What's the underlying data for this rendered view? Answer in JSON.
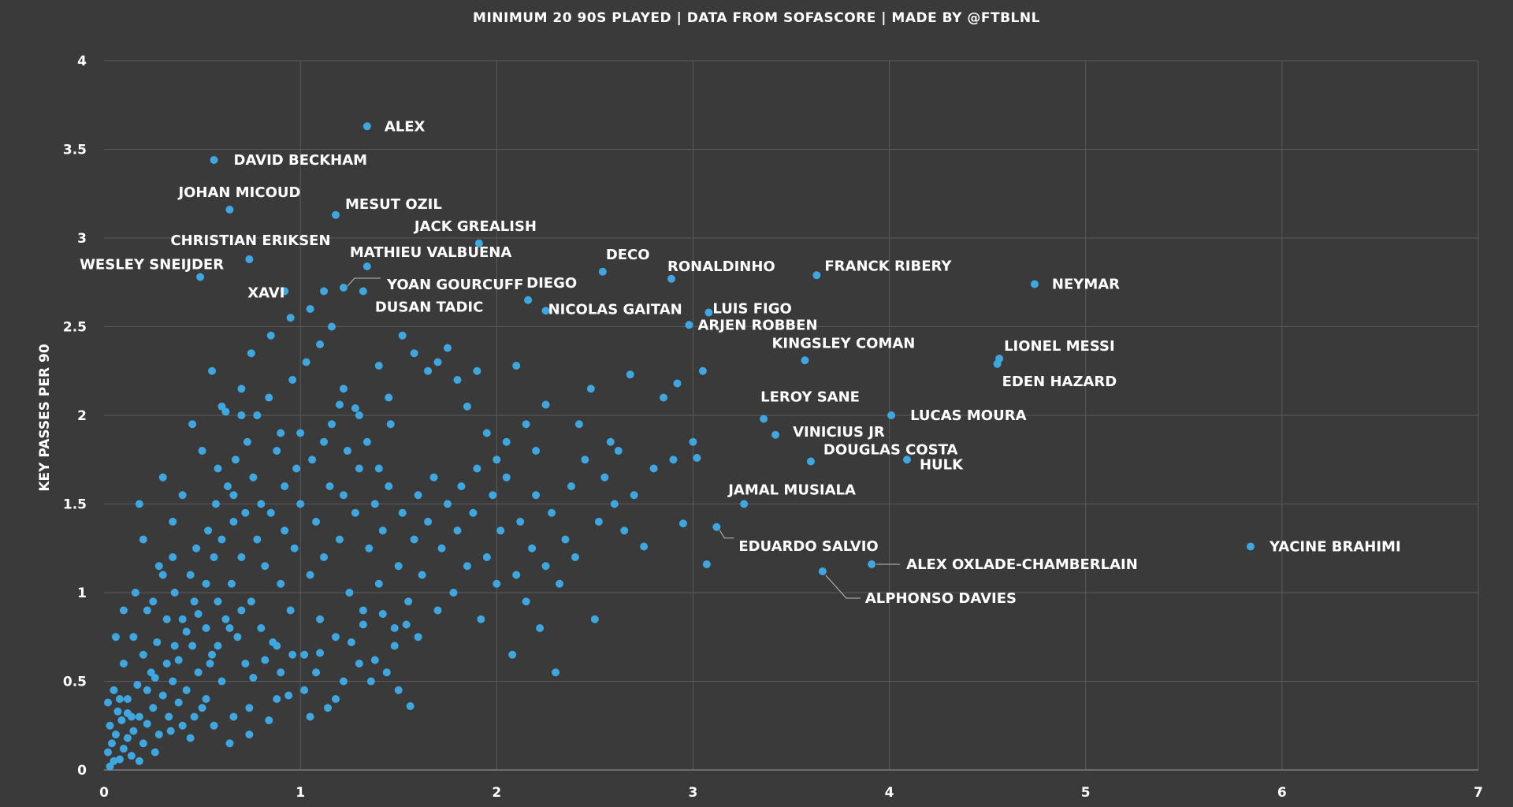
{
  "chart_data": {
    "type": "scatter",
    "title": "",
    "subtitle": "MINIMUM 20 90S PLAYED | DATA FROM SOFASCORE | MADE BY @FTBLNL",
    "xlabel": "",
    "ylabel": "KEY PASSES PER 90",
    "xlim": [
      0,
      7
    ],
    "ylim": [
      0,
      4
    ],
    "xticks": [
      "0",
      "1",
      "2",
      "3",
      "4",
      "5",
      "6",
      "7"
    ],
    "yticks": [
      "0",
      "0.5",
      "1",
      "1.5",
      "2",
      "2.5",
      "3",
      "3.5",
      "4"
    ],
    "grid": true,
    "point_color": "#3fa7e0",
    "background": "#3a3a3a",
    "labeled_points": [
      {
        "name": "ALEX",
        "x": 1.34,
        "y": 3.63
      },
      {
        "name": "DAVID BECKHAM",
        "x": 0.56,
        "y": 3.44
      },
      {
        "name": "JOHAN MICOUD",
        "x": 0.64,
        "y": 3.16
      },
      {
        "name": "MESUT OZIL",
        "x": 1.18,
        "y": 3.13
      },
      {
        "name": "CHRISTIAN ERIKSEN",
        "x": 0.74,
        "y": 2.88
      },
      {
        "name": "JACK GREALISH",
        "x": 1.91,
        "y": 2.97
      },
      {
        "name": "WESLEY SNEIJDER",
        "x": 0.49,
        "y": 2.78
      },
      {
        "name": "XAVI",
        "x": 0.92,
        "y": 2.7
      },
      {
        "name": "MATHIEU VALBUENA",
        "x": 1.34,
        "y": 2.84
      },
      {
        "name": "YOAN GOURCUFF",
        "x": 1.22,
        "y": 2.72
      },
      {
        "name": "DUSAN TADIC",
        "x": 1.32,
        "y": 2.7
      },
      {
        "name": "DECO",
        "x": 2.54,
        "y": 2.81
      },
      {
        "name": "RONALDINHO",
        "x": 2.89,
        "y": 2.77
      },
      {
        "name": "FRANCK RIBERY",
        "x": 3.63,
        "y": 2.79
      },
      {
        "name": "NEYMAR",
        "x": 4.74,
        "y": 2.74
      },
      {
        "name": "DIEGO",
        "x": 2.16,
        "y": 2.65
      },
      {
        "name": "NICOLAS GAITAN",
        "x": 2.25,
        "y": 2.59
      },
      {
        "name": "LUIS FIGO",
        "x": 3.08,
        "y": 2.58
      },
      {
        "name": "ARJEN ROBBEN",
        "x": 2.98,
        "y": 2.51
      },
      {
        "name": "KINGSLEY COMAN",
        "x": 3.57,
        "y": 2.31
      },
      {
        "name": "LIONEL MESSI",
        "x": 4.56,
        "y": 2.32
      },
      {
        "name": "EDEN HAZARD",
        "x": 4.55,
        "y": 2.29
      },
      {
        "name": "LEROY SANE",
        "x": 3.36,
        "y": 1.98
      },
      {
        "name": "LUCAS MOURA",
        "x": 4.01,
        "y": 2.0
      },
      {
        "name": "VINICIUS JR",
        "x": 3.42,
        "y": 1.89
      },
      {
        "name": "DOUGLAS COSTA",
        "x": 3.6,
        "y": 1.74
      },
      {
        "name": "HULK",
        "x": 4.09,
        "y": 1.75
      },
      {
        "name": "JAMAL  MUSIALA",
        "x": 3.26,
        "y": 1.5
      },
      {
        "name": "EDUARDO SALVIO",
        "x": 3.12,
        "y": 1.37
      },
      {
        "name": "ALEX OXLADE-CHAMBERLAIN",
        "x": 3.91,
        "y": 1.16
      },
      {
        "name": "YACINE BRAHIMI",
        "x": 5.84,
        "y": 1.26
      },
      {
        "name": "ALPHONSO DAVIES",
        "x": 3.66,
        "y": 1.12
      }
    ],
    "other_points": [
      [
        0.03,
        0.02
      ],
      [
        0.05,
        0.05
      ],
      [
        0.02,
        0.1
      ],
      [
        0.08,
        0.06
      ],
      [
        0.04,
        0.15
      ],
      [
        0.1,
        0.12
      ],
      [
        0.06,
        0.2
      ],
      [
        0.12,
        0.18
      ],
      [
        0.03,
        0.25
      ],
      [
        0.09,
        0.28
      ],
      [
        0.15,
        0.22
      ],
      [
        0.07,
        0.33
      ],
      [
        0.18,
        0.3
      ],
      [
        0.02,
        0.38
      ],
      [
        0.12,
        0.4
      ],
      [
        0.2,
        0.15
      ],
      [
        0.14,
        0.08
      ],
      [
        0.22,
        0.26
      ],
      [
        0.25,
        0.35
      ],
      [
        0.05,
        0.45
      ],
      [
        0.17,
        0.48
      ],
      [
        0.28,
        0.2
      ],
      [
        0.3,
        0.42
      ],
      [
        0.24,
        0.55
      ],
      [
        0.1,
        0.6
      ],
      [
        0.33,
        0.3
      ],
      [
        0.35,
        0.5
      ],
      [
        0.2,
        0.65
      ],
      [
        0.38,
        0.62
      ],
      [
        0.4,
        0.25
      ],
      [
        0.42,
        0.45
      ],
      [
        0.27,
        0.72
      ],
      [
        0.45,
        0.7
      ],
      [
        0.15,
        0.75
      ],
      [
        0.48,
        0.55
      ],
      [
        0.5,
        0.35
      ],
      [
        0.32,
        0.85
      ],
      [
        0.52,
        0.8
      ],
      [
        0.22,
        0.9
      ],
      [
        0.55,
        0.65
      ],
      [
        0.58,
        0.95
      ],
      [
        0.36,
        1.0
      ],
      [
        0.6,
        0.5
      ],
      [
        0.62,
        0.85
      ],
      [
        0.44,
        1.1
      ],
      [
        0.65,
        1.05
      ],
      [
        0.28,
        1.15
      ],
      [
        0.68,
        0.75
      ],
      [
        0.7,
        1.2
      ],
      [
        0.47,
        1.25
      ],
      [
        0.72,
        0.6
      ],
      [
        0.75,
        0.95
      ],
      [
        0.53,
        1.35
      ],
      [
        0.78,
        1.3
      ],
      [
        0.35,
        1.4
      ],
      [
        0.8,
        0.8
      ],
      [
        0.82,
        1.15
      ],
      [
        0.57,
        1.5
      ],
      [
        0.85,
        1.45
      ],
      [
        0.4,
        1.55
      ],
      [
        0.88,
        0.7
      ],
      [
        0.9,
        1.05
      ],
      [
        0.63,
        1.6
      ],
      [
        0.92,
        1.35
      ],
      [
        0.3,
        1.65
      ],
      [
        0.95,
        0.9
      ],
      [
        0.97,
        1.25
      ],
      [
        0.67,
        1.75
      ],
      [
        1.0,
        1.5
      ],
      [
        0.5,
        1.8
      ],
      [
        1.02,
        0.65
      ],
      [
        1.05,
        1.1
      ],
      [
        0.73,
        1.85
      ],
      [
        1.08,
        1.4
      ],
      [
        0.45,
        1.95
      ],
      [
        1.1,
        0.85
      ],
      [
        1.12,
        1.2
      ],
      [
        0.78,
        2.0
      ],
      [
        1.15,
        1.6
      ],
      [
        0.6,
        2.05
      ],
      [
        1.18,
        0.75
      ],
      [
        1.2,
        1.3
      ],
      [
        0.84,
        2.1
      ],
      [
        1.22,
        1.55
      ],
      [
        0.7,
        2.15
      ],
      [
        1.25,
        1.0
      ],
      [
        1.28,
        1.45
      ],
      [
        0.9,
        1.9
      ],
      [
        1.3,
        1.7
      ],
      [
        0.55,
        2.25
      ],
      [
        1.32,
        0.9
      ],
      [
        1.35,
        1.25
      ],
      [
        0.96,
        2.2
      ],
      [
        1.38,
        1.5
      ],
      [
        0.75,
        2.35
      ],
      [
        1.4,
        1.05
      ],
      [
        1.42,
        1.35
      ],
      [
        1.03,
        2.3
      ],
      [
        1.45,
        1.6
      ],
      [
        0.85,
        2.45
      ],
      [
        1.48,
        0.8
      ],
      [
        1.5,
        1.15
      ],
      [
        1.1,
        2.4
      ],
      [
        1.52,
        1.45
      ],
      [
        0.95,
        2.55
      ],
      [
        1.55,
        0.95
      ],
      [
        1.58,
        1.3
      ],
      [
        1.16,
        2.5
      ],
      [
        1.6,
        1.55
      ],
      [
        1.05,
        2.6
      ],
      [
        1.62,
        1.1
      ],
      [
        1.65,
        1.4
      ],
      [
        1.22,
        2.15
      ],
      [
        1.68,
        1.65
      ],
      [
        1.12,
        2.7
      ],
      [
        1.7,
        0.9
      ],
      [
        1.72,
        1.25
      ],
      [
        1.3,
        2.0
      ],
      [
        1.75,
        1.5
      ],
      [
        1.4,
        2.28
      ],
      [
        1.78,
        1.0
      ],
      [
        1.8,
        1.35
      ],
      [
        1.45,
        2.1
      ],
      [
        1.82,
        1.6
      ],
      [
        1.52,
        2.45
      ],
      [
        1.85,
        1.15
      ],
      [
        1.88,
        1.45
      ],
      [
        1.58,
        2.35
      ],
      [
        1.9,
        1.7
      ],
      [
        1.65,
        2.25
      ],
      [
        1.92,
        0.85
      ],
      [
        1.95,
        1.2
      ],
      [
        1.7,
        2.3
      ],
      [
        1.98,
        1.55
      ],
      [
        1.75,
        2.38
      ],
      [
        2.0,
        1.05
      ],
      [
        2.02,
        1.35
      ],
      [
        1.8,
        2.2
      ],
      [
        2.05,
        1.65
      ],
      [
        1.85,
        2.05
      ],
      [
        2.08,
        0.65
      ],
      [
        2.1,
        1.1
      ],
      [
        1.9,
        2.25
      ],
      [
        2.12,
        1.4
      ],
      [
        1.95,
        1.9
      ],
      [
        2.15,
        0.95
      ],
      [
        2.18,
        1.25
      ],
      [
        2.0,
        1.75
      ],
      [
        2.2,
        1.55
      ],
      [
        2.05,
        1.85
      ],
      [
        2.22,
        0.8
      ],
      [
        2.25,
        1.15
      ],
      [
        2.1,
        2.28
      ],
      [
        2.28,
        1.45
      ],
      [
        2.15,
        1.95
      ],
      [
        2.3,
        0.55
      ],
      [
        2.32,
        1.05
      ],
      [
        2.2,
        1.8
      ],
      [
        2.35,
        1.3
      ],
      [
        2.25,
        2.06
      ],
      [
        2.38,
        1.6
      ],
      [
        2.4,
        1.2
      ],
      [
        2.42,
        1.95
      ],
      [
        2.45,
        1.75
      ],
      [
        2.48,
        2.15
      ],
      [
        2.5,
        0.85
      ],
      [
        2.52,
        1.4
      ],
      [
        2.55,
        1.65
      ],
      [
        2.58,
        1.85
      ],
      [
        2.6,
        1.5
      ],
      [
        2.62,
        1.8
      ],
      [
        2.65,
        1.35
      ],
      [
        2.68,
        2.23
      ],
      [
        2.7,
        1.55
      ],
      [
        2.75,
        1.26
      ],
      [
        2.8,
        1.7
      ],
      [
        2.85,
        2.1
      ],
      [
        2.9,
        1.75
      ],
      [
        2.92,
        2.18
      ],
      [
        2.95,
        1.39
      ],
      [
        3.0,
        1.85
      ],
      [
        3.02,
        1.76
      ],
      [
        3.05,
        2.25
      ],
      [
        3.07,
        1.16
      ],
      [
        0.06,
        0.75
      ],
      [
        0.1,
        0.9
      ],
      [
        0.16,
        1.0
      ],
      [
        0.12,
        0.32
      ],
      [
        0.08,
        0.4
      ],
      [
        0.25,
        0.95
      ],
      [
        0.2,
        1.3
      ],
      [
        0.3,
        1.1
      ],
      [
        0.18,
        1.5
      ],
      [
        0.35,
        1.2
      ],
      [
        0.4,
        0.85
      ],
      [
        0.46,
        0.95
      ],
      [
        0.52,
        1.05
      ],
      [
        0.56,
        1.2
      ],
      [
        0.6,
        1.3
      ],
      [
        0.66,
        1.4
      ],
      [
        0.58,
        1.7
      ],
      [
        0.62,
        2.02
      ],
      [
        0.66,
        1.55
      ],
      [
        0.72,
        1.45
      ],
      [
        0.76,
        1.65
      ],
      [
        0.8,
        1.5
      ],
      [
        0.7,
        2.0
      ],
      [
        0.88,
        1.8
      ],
      [
        0.92,
        1.6
      ],
      [
        0.98,
        1.7
      ],
      [
        1.0,
        1.9
      ],
      [
        1.06,
        1.75
      ],
      [
        1.12,
        1.85
      ],
      [
        1.16,
        1.95
      ],
      [
        1.2,
        2.06
      ],
      [
        1.24,
        1.8
      ],
      [
        1.28,
        2.04
      ],
      [
        1.34,
        1.85
      ],
      [
        1.4,
        1.7
      ],
      [
        1.46,
        1.95
      ],
      [
        0.22,
        0.45
      ],
      [
        0.26,
        0.52
      ],
      [
        0.32,
        0.6
      ],
      [
        0.36,
        0.7
      ],
      [
        0.42,
        0.78
      ],
      [
        0.48,
        0.88
      ],
      [
        0.54,
        0.6
      ],
      [
        0.58,
        0.7
      ],
      [
        0.64,
        0.8
      ],
      [
        0.7,
        0.9
      ],
      [
        0.76,
        0.52
      ],
      [
        0.82,
        0.62
      ],
      [
        0.86,
        0.72
      ],
      [
        0.9,
        0.55
      ],
      [
        0.96,
        0.65
      ],
      [
        1.02,
        0.45
      ],
      [
        1.08,
        0.55
      ],
      [
        1.14,
        0.35
      ],
      [
        1.22,
        0.5
      ],
      [
        1.3,
        0.6
      ],
      [
        1.36,
        0.5
      ],
      [
        1.44,
        0.55
      ],
      [
        1.5,
        0.45
      ],
      [
        1.56,
        0.36
      ],
      [
        1.05,
        0.3
      ],
      [
        0.88,
        0.4
      ],
      [
        0.74,
        0.35
      ],
      [
        0.66,
        0.3
      ],
      [
        0.52,
        0.4
      ],
      [
        0.46,
        0.3
      ],
      [
        0.38,
        0.38
      ],
      [
        0.34,
        0.22
      ],
      [
        0.26,
        0.1
      ],
      [
        0.18,
        0.05
      ],
      [
        0.14,
        0.3
      ],
      [
        0.44,
        0.18
      ],
      [
        0.56,
        0.25
      ],
      [
        0.64,
        0.15
      ],
      [
        0.74,
        0.2
      ],
      [
        0.84,
        0.28
      ],
      [
        0.94,
        0.42
      ],
      [
        1.1,
        0.66
      ],
      [
        1.18,
        0.4
      ],
      [
        1.26,
        0.72
      ],
      [
        1.32,
        0.82
      ],
      [
        1.38,
        0.62
      ],
      [
        1.42,
        0.88
      ],
      [
        1.48,
        0.7
      ],
      [
        1.54,
        0.82
      ],
      [
        1.6,
        0.75
      ]
    ]
  }
}
